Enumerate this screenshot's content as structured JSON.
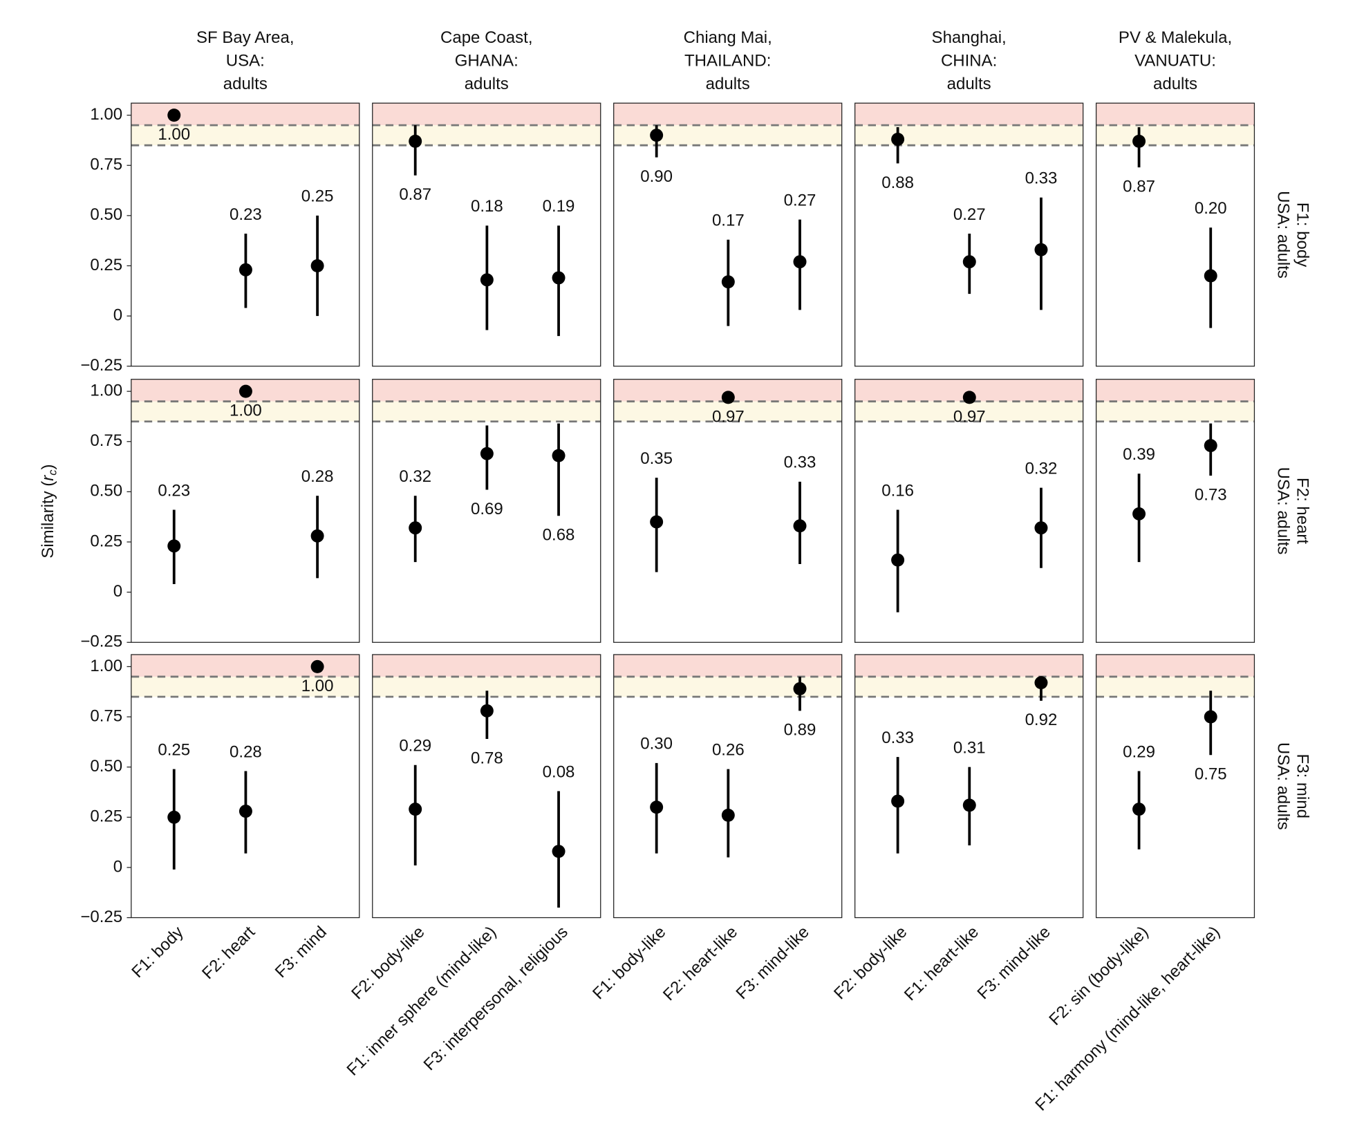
{
  "chart_data": {
    "type": "pointrange",
    "ylabel": {
      "prefix": "Similarity (",
      "var": "r",
      "sub": "c",
      "suffix": ")"
    },
    "ylim": [
      -0.25,
      1.06
    ],
    "yticks": [
      {
        "value": -0.25,
        "label": "−0.25"
      },
      0,
      0.25,
      {
        "value": 0.5,
        "label": "0.50"
      },
      0.75,
      {
        "value": 1,
        "label": "1.00"
      }
    ],
    "bands": [
      {
        "from": 0.95,
        "to": 1.06,
        "color": "#fadbd6"
      },
      {
        "from": 0.85,
        "to": 0.95,
        "color": "#fdf8e4"
      }
    ],
    "ref_lines": [
      0.85,
      0.95
    ],
    "color": "#000000",
    "columns": [
      {
        "title": [
          "SF Bay Area,",
          "USA:",
          "adults"
        ],
        "categories": [
          "F1: body",
          "F2: heart",
          "F3: mind"
        ]
      },
      {
        "title": [
          "Cape Coast,",
          "GHANA:",
          "adults"
        ],
        "categories": [
          "F2: body-like",
          "F1: inner sphere (mind-like)",
          "F3: interpersonal, religious"
        ]
      },
      {
        "title": [
          "Chiang Mai,",
          "THAILAND:",
          "adults"
        ],
        "categories": [
          "F1: body-like",
          "F2: heart-like",
          "F3: mind-like"
        ]
      },
      {
        "title": [
          "Shanghai,",
          "CHINA:",
          "adults"
        ],
        "categories": [
          "F2: body-like",
          "F1: heart-like",
          "F3: mind-like"
        ]
      },
      {
        "title": [
          "PV & Malekula,",
          "VANUATU:",
          "adults"
        ],
        "categories": [
          "F2: sin (body-like)",
          "F1: harmony (mind-like, heart-like)"
        ]
      }
    ],
    "rows": [
      {
        "title": [
          "USA: adults",
          "F1: body"
        ]
      },
      {
        "title": [
          "USA: adults",
          "F2: heart"
        ]
      },
      {
        "title": [
          "USA: adults",
          "F3: mind"
        ]
      }
    ],
    "panels": [
      [
        {
          "values": [
            1,
            0.23,
            0.25
          ],
          "value_labels": [
            "1.00",
            "0.23",
            "0.25"
          ],
          "lower": [
            null,
            0.04,
            0.0
          ],
          "upper": [
            null,
            0.41,
            0.5
          ]
        },
        {
          "values": [
            0.87,
            0.18,
            0.19
          ],
          "value_labels": [
            "0.87",
            "0.18",
            "0.19"
          ],
          "lower": [
            0.7,
            -0.07,
            -0.1
          ],
          "upper": [
            0.95,
            0.45,
            0.45
          ]
        },
        {
          "values": [
            0.9,
            0.17,
            0.27
          ],
          "value_labels": [
            "0.90",
            "0.17",
            "0.27"
          ],
          "lower": [
            0.79,
            -0.05,
            0.03
          ],
          "upper": [
            0.95,
            0.38,
            0.48
          ]
        },
        {
          "values": [
            0.88,
            0.27,
            0.33
          ],
          "value_labels": [
            "0.88",
            "0.27",
            "0.33"
          ],
          "lower": [
            0.76,
            0.11,
            0.03
          ],
          "upper": [
            0.94,
            0.41,
            0.59
          ]
        },
        {
          "values": [
            0.87,
            0.2
          ],
          "value_labels": [
            "0.87",
            "0.20"
          ],
          "lower": [
            0.74,
            -0.06
          ],
          "upper": [
            0.94,
            0.44
          ]
        }
      ],
      [
        {
          "values": [
            0.23,
            1,
            0.28
          ],
          "value_labels": [
            "0.23",
            "1.00",
            "0.28"
          ],
          "lower": [
            0.04,
            null,
            0.07
          ],
          "upper": [
            0.41,
            null,
            0.48
          ]
        },
        {
          "values": [
            0.32,
            0.69,
            0.68
          ],
          "value_labels": [
            "0.32",
            "0.69",
            "0.68"
          ],
          "lower": [
            0.15,
            0.51,
            0.38
          ],
          "upper": [
            0.48,
            0.83,
            0.84
          ]
        },
        {
          "values": [
            0.35,
            0.97,
            0.33
          ],
          "value_labels": [
            "0.35",
            "0.97",
            "0.33"
          ],
          "lower": [
            0.1,
            null,
            0.14
          ],
          "upper": [
            0.57,
            null,
            0.55
          ]
        },
        {
          "values": [
            0.16,
            0.97,
            0.32
          ],
          "value_labels": [
            "0.16",
            "0.97",
            "0.32"
          ],
          "lower": [
            -0.1,
            null,
            0.12
          ],
          "upper": [
            0.41,
            null,
            0.52
          ]
        },
        {
          "values": [
            0.39,
            0.73
          ],
          "value_labels": [
            "0.39",
            "0.73"
          ],
          "lower": [
            0.15,
            0.58
          ],
          "upper": [
            0.59,
            0.84
          ]
        }
      ],
      [
        {
          "values": [
            0.25,
            0.28,
            1
          ],
          "value_labels": [
            "0.25",
            "0.28",
            "1.00"
          ],
          "lower": [
            -0.01,
            0.07,
            null
          ],
          "upper": [
            0.49,
            0.48,
            null
          ]
        },
        {
          "values": [
            0.29,
            0.78,
            0.08
          ],
          "value_labels": [
            "0.29",
            "0.78",
            "0.08"
          ],
          "lower": [
            0.01,
            0.64,
            -0.2
          ],
          "upper": [
            0.51,
            0.88,
            0.38
          ]
        },
        {
          "values": [
            0.3,
            0.26,
            0.89
          ],
          "value_labels": [
            "0.30",
            "0.26",
            "0.89"
          ],
          "lower": [
            0.07,
            0.05,
            0.78
          ],
          "upper": [
            0.52,
            0.49,
            0.95
          ]
        },
        {
          "values": [
            0.33,
            0.31,
            0.92
          ],
          "value_labels": [
            "0.33",
            "0.31",
            "0.92"
          ],
          "lower": [
            0.07,
            0.11,
            0.83
          ],
          "upper": [
            0.55,
            0.5,
            0.95
          ]
        },
        {
          "values": [
            0.29,
            0.75
          ],
          "value_labels": [
            "0.29",
            "0.75"
          ],
          "lower": [
            0.09,
            0.56
          ],
          "upper": [
            0.48,
            0.88
          ]
        }
      ]
    ]
  }
}
